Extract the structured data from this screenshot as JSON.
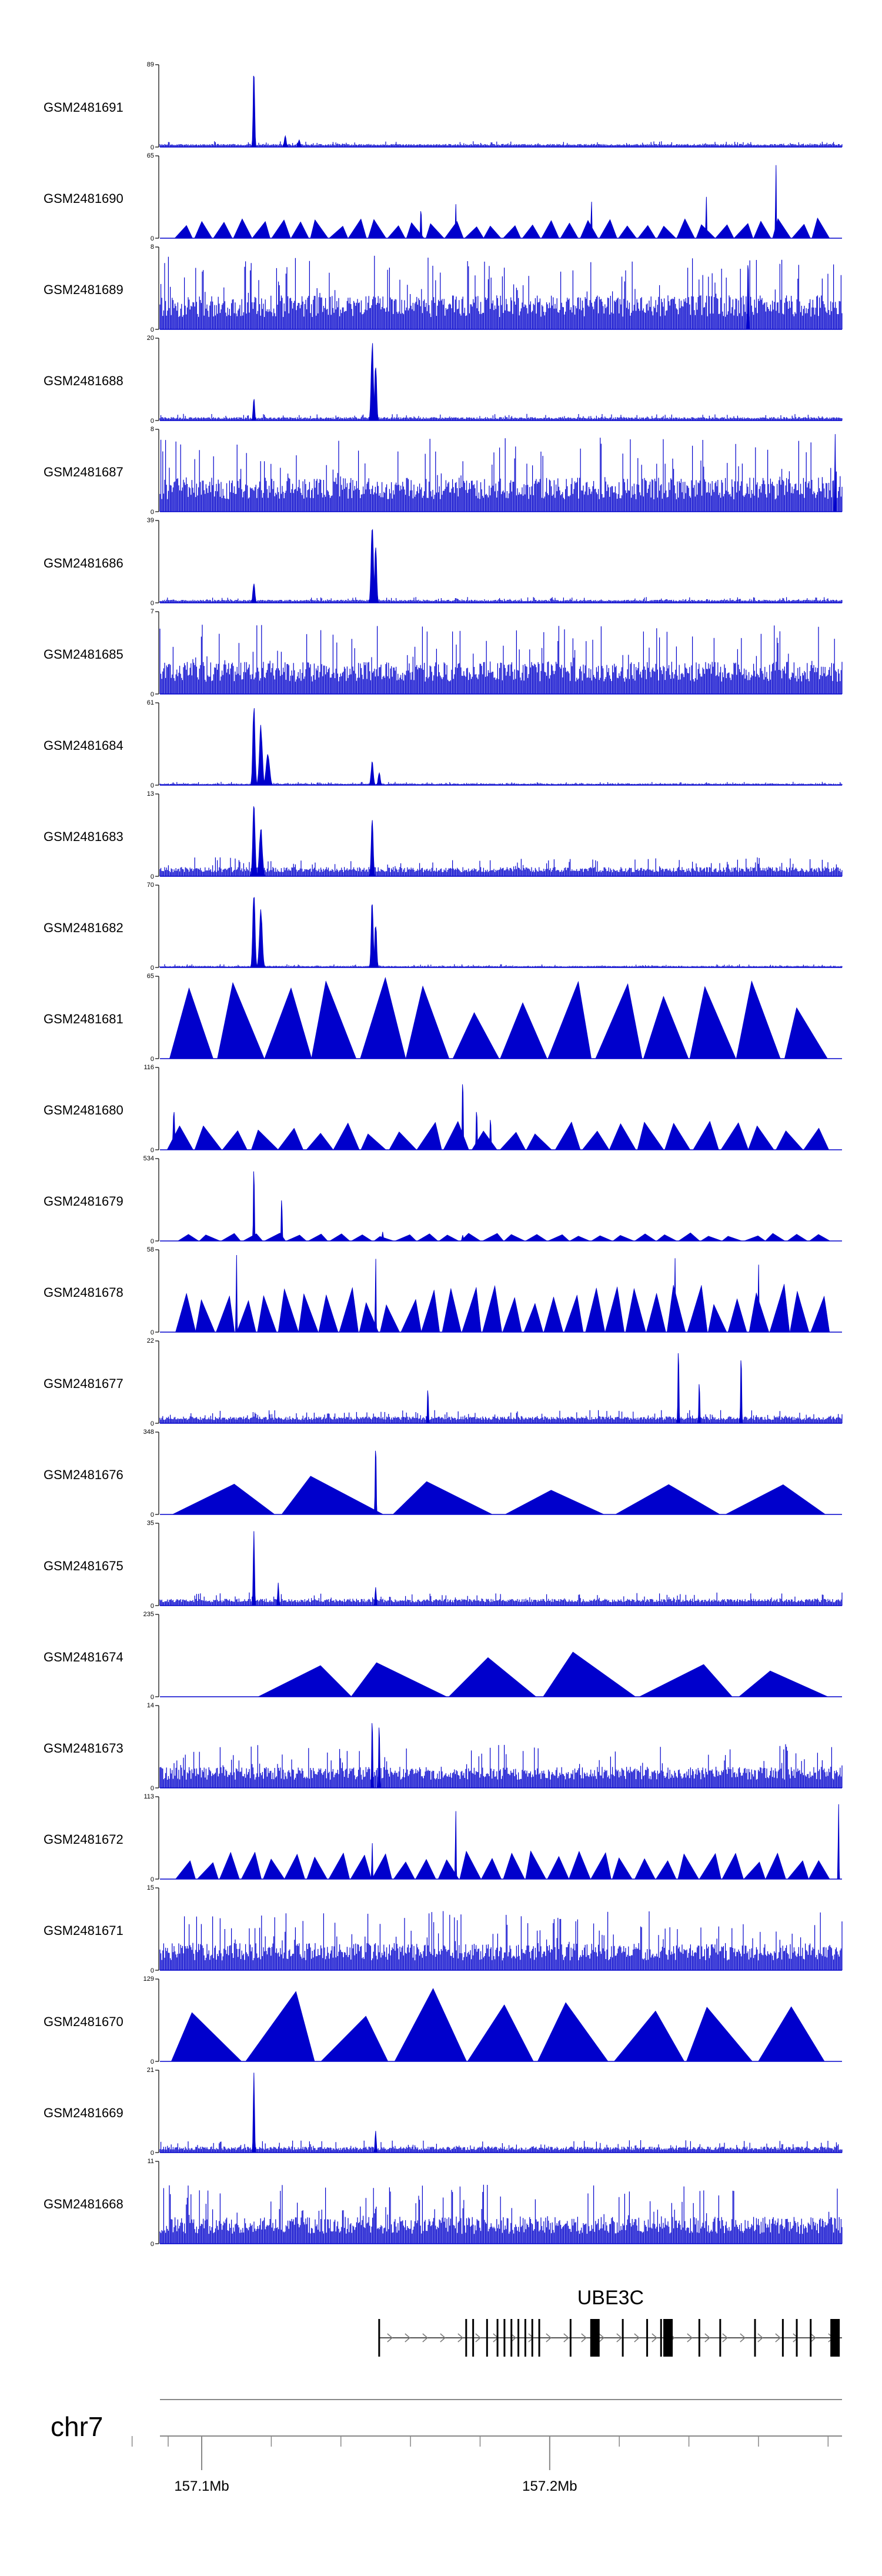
{
  "chart_data": {
    "type": "area",
    "title": "",
    "chromosome": "chr7",
    "track_color": "#0000cc",
    "xlim_mb": [
      157.088,
      157.284
    ],
    "x_ticks": [
      {
        "value": 157.1,
        "label": "157.1Mb"
      },
      {
        "value": 157.2,
        "label": "157.2Mb"
      }
    ],
    "minor_ticks_mb": [
      157.08,
      157.12,
      157.14,
      157.16,
      157.18,
      157.22,
      157.24,
      157.26,
      157.28
    ],
    "gene": {
      "name": "UBE3C",
      "start": 157.151,
      "end": 157.284,
      "strand": "+",
      "exons": [
        157.151,
        157.176,
        157.178,
        157.182,
        157.185,
        157.187,
        157.189,
        157.191,
        157.193,
        157.195,
        157.197,
        157.206,
        157.213,
        157.221,
        157.228,
        157.232,
        157.234,
        157.243,
        157.249,
        157.259,
        157.267,
        157.271,
        157.275,
        157.282
      ],
      "thick_exons": [
        157.213,
        157.234,
        157.282
      ]
    },
    "series": [
      {
        "name": "GSM2481691",
        "ymax": 89,
        "style": "peaks",
        "seed": 11,
        "base": 0.02,
        "noise": 0.05,
        "peaks": [
          [
            157.115,
            89,
            0.6
          ],
          [
            157.124,
            12,
            0.8
          ],
          [
            157.128,
            8,
            0.8
          ]
        ]
      },
      {
        "name": "GSM2481690",
        "ymax": 65,
        "style": "triangles",
        "seed": 12,
        "tri_count": 34,
        "tri_height": 0.25,
        "peaks": [
          [
            157.163,
            25,
            0.4
          ],
          [
            157.173,
            30,
            0.3
          ],
          [
            157.212,
            35,
            0.3
          ],
          [
            157.265,
            65,
            0.3
          ],
          [
            157.245,
            40,
            0.3
          ]
        ]
      },
      {
        "name": "GSM2481689",
        "ymax": 8,
        "style": "noise",
        "seed": 13,
        "base": 0.15,
        "noise": 0.75,
        "peaks": [
          [
            157.257,
            8,
            0.4
          ]
        ]
      },
      {
        "name": "GSM2481688",
        "ymax": 20,
        "style": "peaks",
        "seed": 14,
        "base": 0.02,
        "noise": 0.06,
        "peaks": [
          [
            157.115,
            6,
            0.6
          ],
          [
            157.149,
            20,
            0.9
          ],
          [
            157.15,
            14,
            0.8
          ]
        ]
      },
      {
        "name": "GSM2481687",
        "ymax": 8,
        "style": "noise",
        "seed": 15,
        "base": 0.15,
        "noise": 0.75,
        "peaks": [
          [
            157.282,
            8,
            0.3
          ]
        ]
      },
      {
        "name": "GSM2481686",
        "ymax": 39,
        "style": "peaks",
        "seed": 16,
        "base": 0.02,
        "noise": 0.05,
        "peaks": [
          [
            157.115,
            10,
            0.8
          ],
          [
            157.149,
            39,
            0.9
          ],
          [
            157.15,
            28,
            0.8
          ]
        ]
      },
      {
        "name": "GSM2481685",
        "ymax": 7,
        "style": "noise",
        "seed": 17,
        "base": 0.15,
        "noise": 0.7,
        "peaks": []
      },
      {
        "name": "GSM2481684",
        "ymax": 61,
        "style": "peaks",
        "seed": 18,
        "base": 0.01,
        "noise": 0.03,
        "peaks": [
          [
            157.115,
            61,
            0.9
          ],
          [
            157.117,
            45,
            1.2
          ],
          [
            157.119,
            25,
            1.4
          ],
          [
            157.149,
            18,
            0.9
          ],
          [
            157.151,
            10,
            0.8
          ]
        ]
      },
      {
        "name": "GSM2481683",
        "ymax": 13,
        "style": "peaks",
        "seed": 19,
        "base": 0.05,
        "noise": 0.18,
        "peaks": [
          [
            157.115,
            13,
            0.9
          ],
          [
            157.117,
            8,
            1.2
          ],
          [
            157.149,
            10,
            0.8
          ]
        ]
      },
      {
        "name": "GSM2481682",
        "ymax": 70,
        "style": "peaks",
        "seed": 20,
        "base": 0.01,
        "noise": 0.03,
        "peaks": [
          [
            157.115,
            70,
            0.9
          ],
          [
            157.117,
            50,
            1.2
          ],
          [
            157.149,
            60,
            0.8
          ],
          [
            157.15,
            40,
            0.8
          ]
        ]
      },
      {
        "name": "GSM2481681",
        "ymax": 65,
        "style": "triangles",
        "seed": 21,
        "tri_count": 14,
        "tri_height": 1.0,
        "peaks": []
      },
      {
        "name": "GSM2481680",
        "ymax": 116,
        "style": "triangles",
        "seed": 22,
        "tri_count": 24,
        "tri_height": 0.35,
        "peaks": [
          [
            157.092,
            60,
            0.6
          ],
          [
            157.175,
            116,
            0.4
          ],
          [
            157.179,
            70,
            0.4
          ],
          [
            157.183,
            50,
            0.4
          ]
        ]
      },
      {
        "name": "GSM2481679",
        "ymax": 534,
        "style": "triangles",
        "seed": 23,
        "tri_count": 30,
        "tri_height": 0.1,
        "peaks": [
          [
            157.115,
            534,
            0.4
          ],
          [
            157.123,
            300,
            0.4
          ],
          [
            157.152,
            60,
            0.5
          ],
          [
            157.175,
            40,
            0.5
          ]
        ]
      },
      {
        "name": "GSM2481678",
        "ymax": 58,
        "style": "triangles",
        "seed": 24,
        "tri_count": 32,
        "tri_height": 0.6,
        "peaks": [
          [
            157.11,
            58,
            0.3
          ],
          [
            157.15,
            58,
            0.3
          ],
          [
            157.26,
            58,
            0.3
          ],
          [
            157.236,
            58,
            0.3
          ]
        ]
      },
      {
        "name": "GSM2481677",
        "ymax": 22,
        "style": "peaks",
        "seed": 25,
        "base": 0.04,
        "noise": 0.12,
        "peaks": [
          [
            157.237,
            22,
            0.4
          ],
          [
            157.255,
            22,
            0.4
          ],
          [
            157.165,
            10,
            0.4
          ],
          [
            157.243,
            12,
            0.4
          ]
        ]
      },
      {
        "name": "GSM2481676",
        "ymax": 348,
        "style": "triangles",
        "seed": 26,
        "tri_count": 6,
        "tri_height": 0.5,
        "peaks": [
          [
            157.15,
            348,
            0.4
          ]
        ]
      },
      {
        "name": "GSM2481675",
        "ymax": 35,
        "style": "peaks",
        "seed": 27,
        "base": 0.04,
        "noise": 0.12,
        "peaks": [
          [
            157.115,
            35,
            0.5
          ],
          [
            157.122,
            10,
            0.5
          ],
          [
            157.15,
            8,
            0.5
          ]
        ]
      },
      {
        "name": "GSM2481674",
        "ymax": 235,
        "style": "triangles_wide",
        "seed": 28,
        "tri_count": 6,
        "tri_height": 0.55,
        "peaks": []
      },
      {
        "name": "GSM2481673",
        "ymax": 14,
        "style": "noise",
        "seed": 29,
        "base": 0.1,
        "noise": 0.45,
        "peaks": [
          [
            157.149,
            14,
            0.4
          ],
          [
            157.151,
            12,
            0.4
          ]
        ]
      },
      {
        "name": "GSM2481672",
        "ymax": 113,
        "style": "triangles",
        "seed": 30,
        "tri_count": 30,
        "tri_height": 0.35,
        "peaks": [
          [
            157.149,
            60,
            0.3
          ],
          [
            157.173,
            113,
            0.3
          ],
          [
            157.283,
            113,
            0.3
          ]
        ]
      },
      {
        "name": "GSM2481671",
        "ymax": 15,
        "style": "noise",
        "seed": 31,
        "base": 0.12,
        "noise": 0.6,
        "peaks": []
      },
      {
        "name": "GSM2481670",
        "ymax": 129,
        "style": "triangles",
        "seed": 32,
        "tri_count": 9,
        "tri_height": 1.0,
        "peaks": []
      },
      {
        "name": "GSM2481669",
        "ymax": 21,
        "style": "peaks",
        "seed": 33,
        "base": 0.03,
        "noise": 0.12,
        "peaks": [
          [
            157.115,
            21,
            0.5
          ],
          [
            157.15,
            6,
            0.5
          ]
        ]
      },
      {
        "name": "GSM2481668",
        "ymax": 11,
        "style": "noise",
        "seed": 34,
        "base": 0.12,
        "noise": 0.6,
        "peaks": []
      }
    ]
  }
}
